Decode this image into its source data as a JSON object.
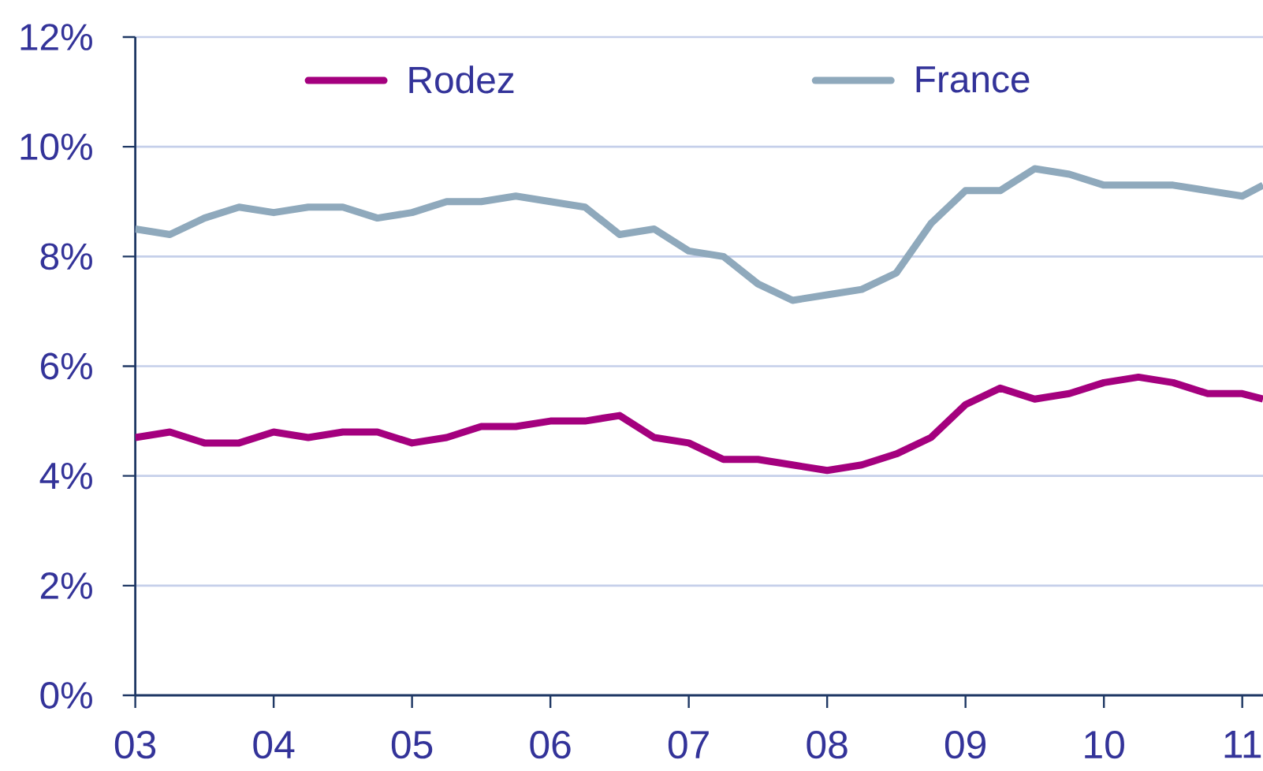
{
  "chart_data": {
    "type": "line",
    "x": [
      2003,
      2003.25,
      2003.5,
      2003.75,
      2004,
      2004.25,
      2004.5,
      2004.75,
      2005,
      2005.25,
      2005.5,
      2005.75,
      2006,
      2006.25,
      2006.5,
      2006.75,
      2007,
      2007.25,
      2007.5,
      2007.75,
      2008,
      2008.25,
      2008.5,
      2008.75,
      2009,
      2009.25,
      2009.5,
      2009.75,
      2010,
      2010.25,
      2010.5,
      2010.75,
      2011,
      2011.15
    ],
    "xlim": [
      2003,
      2011.15
    ],
    "xticks": [
      {
        "value": 2003,
        "label": "03"
      },
      {
        "value": 2004,
        "label": "04"
      },
      {
        "value": 2005,
        "label": "05"
      },
      {
        "value": 2006,
        "label": "06"
      },
      {
        "value": 2007,
        "label": "07"
      },
      {
        "value": 2008,
        "label": "08"
      },
      {
        "value": 2009,
        "label": "09"
      },
      {
        "value": 2010,
        "label": "10"
      },
      {
        "value": 2011,
        "label": "11"
      }
    ],
    "ylim": [
      0,
      12
    ],
    "yticks": [
      {
        "value": 0,
        "label": "0%"
      },
      {
        "value": 2,
        "label": "2%"
      },
      {
        "value": 4,
        "label": "4%"
      },
      {
        "value": 6,
        "label": "6%"
      },
      {
        "value": 8,
        "label": "8%"
      },
      {
        "value": 10,
        "label": "10%"
      },
      {
        "value": 12,
        "label": "12%"
      }
    ],
    "grid": "y",
    "legend": "top",
    "series": [
      {
        "name": "Rodez",
        "color": "#a4007e",
        "values": [
          4.7,
          4.8,
          4.6,
          4.6,
          4.8,
          4.7,
          4.8,
          4.8,
          4.6,
          4.7,
          4.9,
          4.9,
          5.0,
          5.0,
          5.1,
          4.7,
          4.6,
          4.3,
          4.3,
          4.2,
          4.1,
          4.2,
          4.4,
          4.7,
          5.3,
          5.6,
          5.4,
          5.5,
          5.7,
          5.8,
          5.7,
          5.5,
          5.5,
          5.4
        ]
      },
      {
        "name": "France",
        "color": "#8fa9bc",
        "values": [
          8.5,
          8.4,
          8.7,
          8.9,
          8.8,
          8.9,
          8.9,
          8.7,
          8.8,
          9.0,
          9.0,
          9.1,
          9.0,
          8.9,
          8.4,
          8.5,
          8.1,
          8.0,
          7.5,
          7.2,
          7.3,
          7.4,
          7.7,
          8.6,
          9.2,
          9.2,
          9.6,
          9.5,
          9.3,
          9.3,
          9.3,
          9.2,
          9.1,
          9.3
        ]
      }
    ]
  }
}
